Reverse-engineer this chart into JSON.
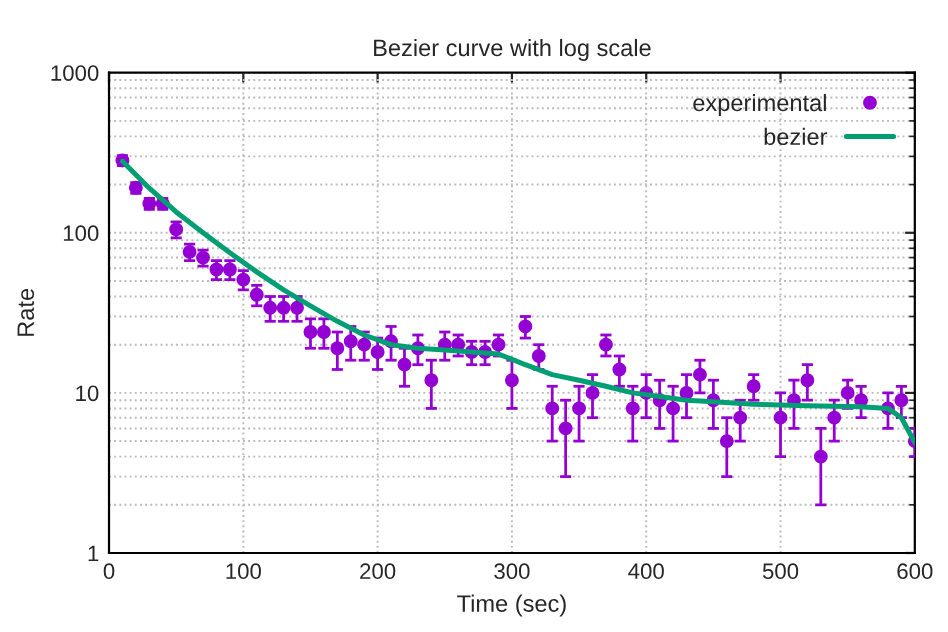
{
  "chart_data": {
    "type": "scatter",
    "title": "Bezier curve with log scale",
    "xlabel": "Time (sec)",
    "ylabel": "Rate",
    "xlim": [
      0,
      600
    ],
    "xticks": [
      0,
      100,
      200,
      300,
      400,
      500,
      600
    ],
    "ylim": [
      1,
      1000
    ],
    "yticks": [
      1,
      10,
      100,
      1000
    ],
    "log": "y",
    "grid": true,
    "legend": "top right",
    "series": [
      {
        "name": "experimental",
        "color": "#9400d3",
        "marker": "circle",
        "x": [
          10,
          20,
          30,
          40,
          50,
          60,
          70,
          80,
          90,
          100,
          110,
          120,
          130,
          140,
          150,
          160,
          170,
          180,
          190,
          200,
          210,
          220,
          230,
          240,
          250,
          260,
          270,
          280,
          290,
          300,
          310,
          320,
          330,
          340,
          350,
          360,
          370,
          380,
          390,
          400,
          410,
          420,
          430,
          440,
          450,
          460,
          470,
          480,
          500,
          510,
          520,
          530,
          540,
          550,
          560,
          580,
          590,
          600
        ],
        "values": [
          283,
          191,
          152,
          152,
          105,
          76,
          70,
          59,
          59,
          51,
          41,
          34,
          34,
          34,
          24,
          24,
          19,
          21,
          20,
          18,
          21,
          15,
          19,
          12,
          20,
          20,
          18,
          18,
          20,
          12,
          26,
          17,
          8,
          6,
          8,
          10,
          20,
          14,
          8,
          10,
          9,
          8,
          10,
          13,
          9,
          5,
          7,
          11,
          7,
          9,
          12,
          4,
          7,
          10,
          9,
          8,
          9,
          5
        ],
        "errors": [
          20,
          15,
          12,
          12,
          12,
          9,
          8,
          8,
          8,
          7,
          6,
          6,
          6,
          6,
          5,
          5,
          5,
          5,
          4,
          4,
          5,
          4,
          4,
          4,
          4,
          3,
          3,
          3,
          3,
          4,
          4,
          3,
          3,
          3,
          3,
          3,
          3,
          3,
          3,
          3,
          3,
          3,
          3,
          3,
          3,
          2,
          2,
          2,
          3,
          3,
          3,
          2,
          2,
          2,
          2,
          2,
          2,
          1
        ]
      },
      {
        "name": "bezier",
        "type": "line",
        "color": "#009e73",
        "marker": "none",
        "line_style": "solid",
        "x": [
          10,
          30,
          50,
          70,
          90,
          110,
          130,
          150,
          170,
          190,
          210,
          230,
          250,
          270,
          290,
          310,
          330,
          350,
          370,
          390,
          410,
          430,
          450,
          480,
          520,
          560,
          580,
          590,
          600
        ],
        "values": [
          280,
          190,
          135,
          100,
          75,
          57,
          44,
          35,
          28,
          23,
          20,
          19,
          18.5,
          18,
          17.5,
          15,
          13,
          12,
          11,
          10,
          9.5,
          9,
          8.8,
          8.5,
          8.3,
          8.2,
          8,
          7,
          4.9
        ]
      }
    ]
  }
}
